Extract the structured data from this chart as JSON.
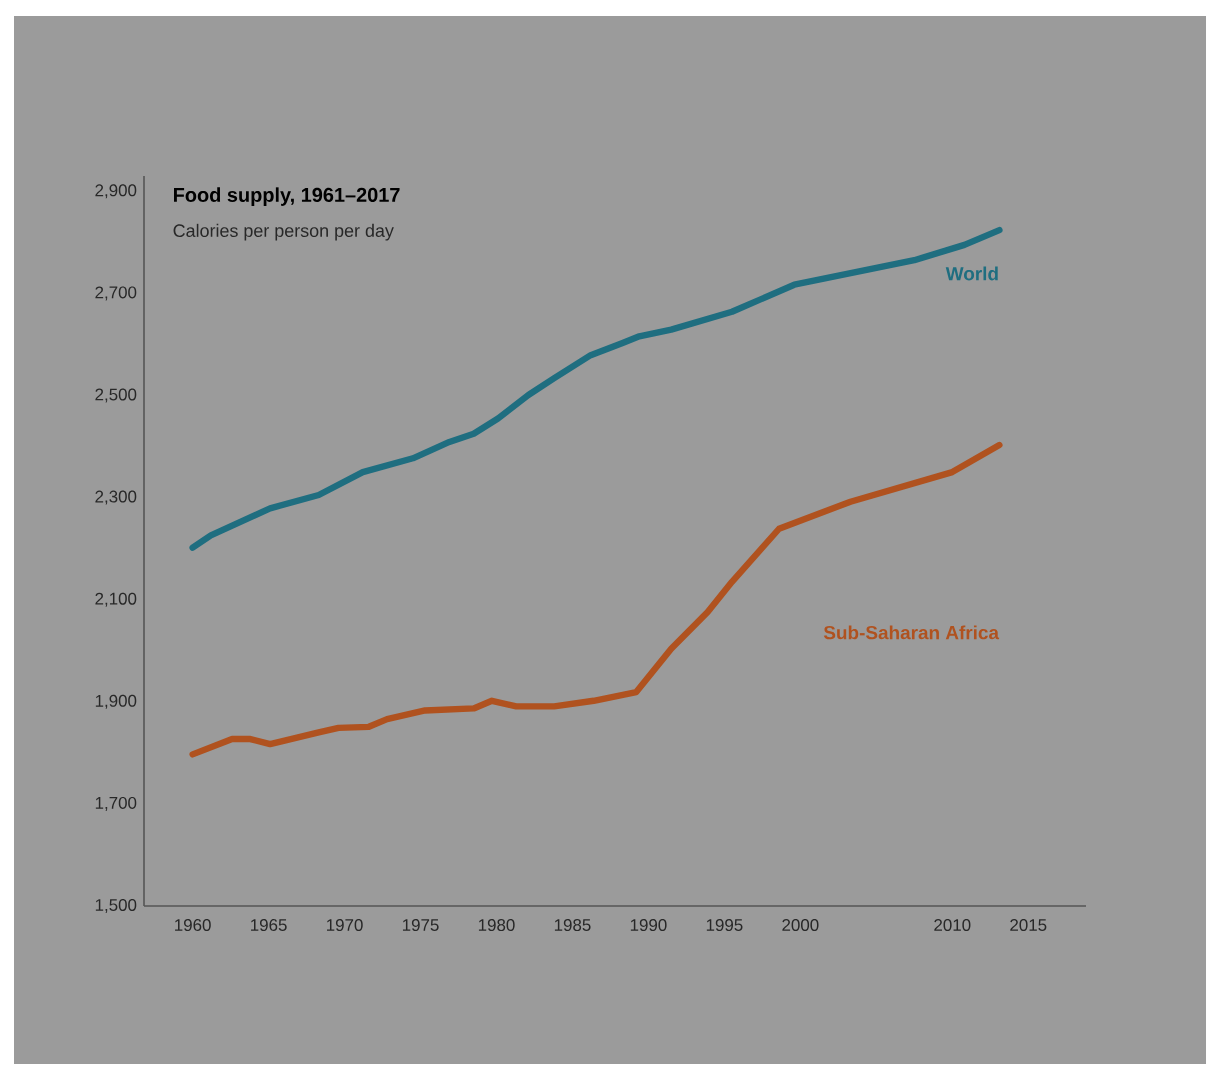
{
  "chart_data": {
    "type": "line",
    "title": "Food supply, 1961–2017",
    "subtitle": "Calories per person per day",
    "xlim": [
      1956.8,
      2018.8
    ],
    "ylim": [
      1500,
      2930
    ],
    "xticks": [
      1960,
      1965,
      1970,
      1975,
      1980,
      1985,
      1990,
      1995,
      2000,
      2010,
      2015
    ],
    "yticks": [
      {
        "value": 1500,
        "label": "1,500"
      },
      {
        "value": 1700,
        "label": "1,700"
      },
      {
        "value": 1900,
        "label": "1,900"
      },
      {
        "value": 2100,
        "label": "2,100"
      },
      {
        "value": 2300,
        "label": "2,300"
      },
      {
        "value": 2500,
        "label": "2,500"
      },
      {
        "value": 2700,
        "label": "2,700"
      },
      {
        "value": 2900,
        "label": "2,900"
      }
    ],
    "series": [
      {
        "name": "World",
        "color": "#1f6e80",
        "x": [
          1960,
          1961.2,
          1965.1,
          1968.3,
          1971.2,
          1974.5,
          1976.9,
          1978.5,
          1980.1,
          1982.1,
          1983.8,
          1986.2,
          1988.3,
          1989.4,
          1991.5,
          1995.5,
          1999.6,
          2007.5,
          2010.8,
          2013.1
        ],
        "values": [
          2202,
          2226,
          2279,
          2305,
          2350,
          2377,
          2409,
          2425,
          2455,
          2501,
          2534,
          2579,
          2603,
          2616,
          2629,
          2664,
          2717,
          2765,
          2795,
          2824
        ]
      },
      {
        "name": "Sub-Saharan Africa",
        "color": "#b0521f",
        "x": [
          1960,
          1962.6,
          1963.8,
          1965.1,
          1968.3,
          1969.6,
          1971.6,
          1972.8,
          1975.3,
          1978.5,
          1979.7,
          1981.3,
          1983.8,
          1986.4,
          1989.2,
          1991.5,
          1993.9,
          1995.5,
          1998.6,
          2003.3,
          2010,
          2013.1
        ],
        "values": [
          1797,
          1827,
          1827,
          1817,
          1840,
          1849,
          1851,
          1866,
          1883,
          1887,
          1902,
          1891,
          1891,
          1902,
          1919,
          2004,
          2076,
          2135,
          2239,
          2292,
          2350,
          2403
        ]
      }
    ]
  }
}
